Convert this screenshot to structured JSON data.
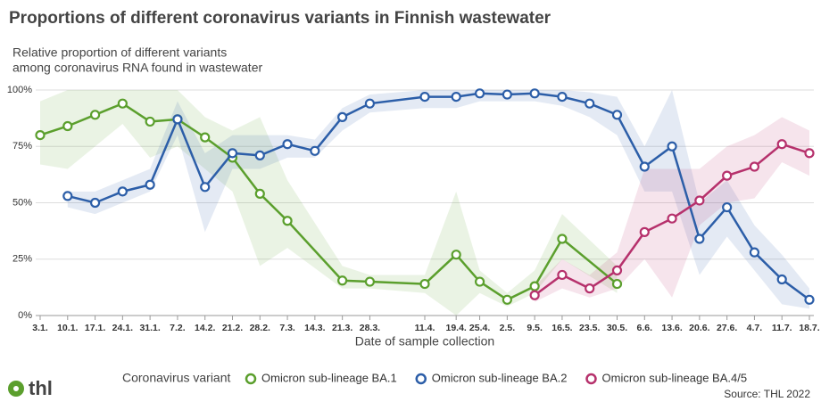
{
  "chart_data": {
    "type": "line",
    "title": "Proportions of different coronavirus variants in Finnish wastewater",
    "subtitle": [
      "Relative proportion of different variants",
      "among coronavirus RNA found in wastewater"
    ],
    "x_label": "Date of sample collection",
    "legend_title": "Coronavirus variant",
    "source": "Source: THL 2022",
    "logo": "thl",
    "categories": [
      "3.1.",
      "10.1.",
      "17.1.",
      "24.1.",
      "31.1.",
      "7.2.",
      "14.2.",
      "21.2.",
      "28.2.",
      "7.3.",
      "14.3.",
      "21.3.",
      "28.3.",
      "11.4.",
      "19.4.",
      "25.4.",
      "2.5.",
      "9.5.",
      "16.5.",
      "23.5.",
      "30.5.",
      "6.6.",
      "13.6.",
      "20.6.",
      "27.6.",
      "4.7.",
      "11.7.",
      "18.7."
    ],
    "ylim": [
      0,
      100
    ],
    "yticks": [
      {
        "value": 0,
        "label": "0%"
      },
      {
        "value": 25,
        "label": "25%"
      },
      {
        "value": 50,
        "label": "50%"
      },
      {
        "value": 75,
        "label": "75%"
      },
      {
        "value": 100,
        "label": "100%"
      }
    ],
    "grid": true,
    "series": [
      {
        "name": "Omicron sub-lineage BA.1",
        "color": "#5b9f2d",
        "x": [
          "3.1.",
          "10.1.",
          "17.1.",
          "24.1.",
          "31.1.",
          "7.2.",
          "14.2.",
          "21.2.",
          "28.2.",
          "7.3.",
          "21.3.",
          "28.3.",
          "11.4.",
          "19.4.",
          "25.4.",
          "2.5.",
          "9.5.",
          "16.5.",
          "30.5."
        ],
        "values": [
          80,
          84,
          89,
          94,
          86,
          87,
          79,
          70,
          54,
          42,
          15.5,
          15,
          14,
          27,
          15,
          7,
          13,
          34,
          14
        ],
        "lower": [
          67,
          65,
          75,
          85,
          70,
          75,
          65,
          55,
          22,
          30,
          12,
          12,
          10,
          0,
          10,
          4,
          10,
          25,
          10
        ],
        "upper": [
          95,
          100,
          100,
          100,
          100,
          100,
          88,
          82,
          88,
          60,
          22,
          18,
          18,
          55,
          20,
          10,
          20,
          45,
          22
        ]
      },
      {
        "name": "Omicron sub-lineage BA.2",
        "color": "#2c5ea8",
        "x": [
          "10.1.",
          "17.1.",
          "24.1.",
          "31.1.",
          "7.2.",
          "14.2.",
          "21.2.",
          "28.2.",
          "7.3.",
          "14.3.",
          "21.3.",
          "28.3.",
          "11.4.",
          "19.4.",
          "25.4.",
          "2.5.",
          "9.5.",
          "16.5.",
          "23.5.",
          "30.5.",
          "6.6.",
          "13.6.",
          "20.6.",
          "27.6.",
          "4.7.",
          "11.7.",
          "18.7."
        ],
        "values": [
          53,
          50,
          55,
          58,
          87,
          57,
          72,
          71,
          76,
          73,
          88,
          94,
          97,
          97,
          98.5,
          98,
          98.5,
          97,
          94,
          89,
          66,
          75,
          34,
          48,
          28,
          16,
          7
        ],
        "lower": [
          48,
          45,
          50,
          55,
          80,
          37,
          65,
          65,
          70,
          70,
          82,
          90,
          92,
          92,
          95,
          95,
          95,
          93,
          88,
          80,
          55,
          55,
          18,
          35,
          20,
          5,
          3
        ],
        "upper": [
          55,
          55,
          60,
          65,
          95,
          72,
          80,
          80,
          80,
          78,
          92,
          98,
          100,
          100,
          100,
          100,
          100,
          100,
          99,
          97,
          75,
          100,
          50,
          60,
          40,
          27,
          12
        ]
      },
      {
        "name": "Omicron sub-lineage BA.4/5",
        "color": "#b6316c",
        "x": [
          "9.5.",
          "16.5.",
          "23.5.",
          "30.5.",
          "6.6.",
          "13.6.",
          "20.6.",
          "27.6.",
          "4.7.",
          "11.7.",
          "18.7."
        ],
        "values": [
          9,
          18,
          12,
          20,
          37,
          43,
          51,
          62,
          66,
          76,
          72
        ],
        "lower": [
          6,
          12,
          8,
          12,
          25,
          8,
          40,
          50,
          52,
          68,
          62
        ],
        "upper": [
          13,
          25,
          18,
          28,
          65,
          65,
          65,
          75,
          80,
          88,
          82
        ]
      }
    ]
  }
}
